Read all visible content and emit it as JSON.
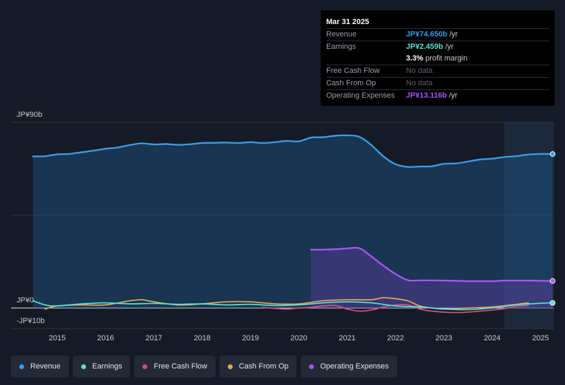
{
  "tooltip": {
    "date": "Mar 31 2025",
    "rows": {
      "revenue": {
        "label": "Revenue",
        "value": "JP¥74.650b",
        "unit": "/yr",
        "color": "#3b9be6"
      },
      "earnings": {
        "label": "Earnings",
        "value": "JP¥2.459b",
        "unit": "/yr",
        "color": "#5ce0d2"
      },
      "margin": {
        "value": "3.3%",
        "unit": "profit margin"
      },
      "fcf": {
        "label": "Free Cash Flow",
        "value": "No data"
      },
      "cfo": {
        "label": "Cash From Op",
        "value": "No data"
      },
      "opex": {
        "label": "Operating Expenses",
        "value": "JP¥13.116b",
        "unit": "/yr",
        "color": "#a855f7"
      }
    }
  },
  "legend": [
    {
      "label": "Revenue",
      "color": "#3b9be6"
    },
    {
      "label": "Earnings",
      "color": "#5ce0d2"
    },
    {
      "label": "Free Cash Flow",
      "color": "#d64f85"
    },
    {
      "label": "Cash From Op",
      "color": "#e6a659"
    },
    {
      "label": "Operating Expenses",
      "color": "#a855f7"
    }
  ],
  "chart_data": {
    "type": "line",
    "title": "",
    "xlabel": "",
    "ylabel": "",
    "y_tick_labels": [
      "JP¥90b",
      "JP¥0",
      "-JP¥10b"
    ],
    "ylim": [
      -10,
      90
    ],
    "xlim": [
      2014.5,
      2025.25
    ],
    "x_ticks": [
      2015,
      2016,
      2017,
      2018,
      2019,
      2020,
      2021,
      2022,
      2023,
      2024,
      2025
    ],
    "forecast_shade_from": 2024.25,
    "series": [
      {
        "name": "Revenue",
        "color": "#3b9be6",
        "fill": true,
        "x": [
          2014.5,
          2014.75,
          2015.0,
          2015.25,
          2015.5,
          2015.75,
          2016.0,
          2016.25,
          2016.5,
          2016.75,
          2017.0,
          2017.25,
          2017.5,
          2017.75,
          2018.0,
          2018.25,
          2018.5,
          2018.75,
          2019.0,
          2019.25,
          2019.5,
          2019.75,
          2020.0,
          2020.25,
          2020.5,
          2020.75,
          2021.0,
          2021.25,
          2021.5,
          2021.75,
          2022.0,
          2022.25,
          2022.5,
          2022.75,
          2023.0,
          2023.25,
          2023.5,
          2023.75,
          2024.0,
          2024.25,
          2024.5,
          2024.75,
          2025.0,
          2025.25
        ],
        "values": [
          73.5,
          73.6,
          74.5,
          74.7,
          75.5,
          76.3,
          77.2,
          77.8,
          79.0,
          79.8,
          79.3,
          79.5,
          79.1,
          79.4,
          80.0,
          80.1,
          80.2,
          80.0,
          80.4,
          80.0,
          80.4,
          81.0,
          80.8,
          82.6,
          82.8,
          83.5,
          83.7,
          83.0,
          79.0,
          73.5,
          69.7,
          68.4,
          68.6,
          68.7,
          69.9,
          70.1,
          71.0,
          72.0,
          72.4,
          73.2,
          73.6,
          74.4,
          74.7,
          74.65
        ]
      },
      {
        "name": "Earnings",
        "color": "#5ce0d2",
        "fill": false,
        "x": [
          2014.5,
          2014.75,
          2015.0,
          2015.5,
          2016.0,
          2016.5,
          2017.0,
          2017.5,
          2018.0,
          2018.5,
          2019.0,
          2019.5,
          2020.0,
          2020.5,
          2021.0,
          2021.5,
          2022.0,
          2022.5,
          2023.0,
          2023.5,
          2024.0,
          2024.5,
          2025.0,
          2025.25
        ],
        "values": [
          3.5,
          1.5,
          1.0,
          2.0,
          2.5,
          2.0,
          2.2,
          1.8,
          2.0,
          1.5,
          1.8,
          1.2,
          1.5,
          2.5,
          3.0,
          2.5,
          1.0,
          0.5,
          -0.5,
          -0.8,
          0.0,
          1.5,
          2.3,
          2.459
        ]
      },
      {
        "name": "Free Cash Flow",
        "color": "#d64f85",
        "fill": false,
        "x": [
          2019.25,
          2019.5,
          2019.75,
          2020.0,
          2020.25,
          2020.5,
          2020.75,
          2021.0,
          2021.25,
          2021.5,
          2021.75,
          2022.0,
          2022.25,
          2022.5,
          2022.75,
          2023.0,
          2023.25,
          2023.5,
          2023.75,
          2024.0,
          2024.25,
          2024.5,
          2024.75
        ],
        "values": [
          0.3,
          -0.2,
          -0.5,
          0.0,
          0.3,
          1.0,
          1.2,
          -0.5,
          -1.5,
          -1.0,
          0.5,
          1.5,
          1.5,
          -0.5,
          -1.5,
          -2.0,
          -2.2,
          -2.0,
          -1.5,
          -1.0,
          -0.3,
          0.8,
          1.2
        ]
      },
      {
        "name": "Cash From Op",
        "color": "#e6a659",
        "fill": false,
        "x": [
          2014.75,
          2015.0,
          2015.5,
          2016.0,
          2016.5,
          2016.75,
          2017.0,
          2017.5,
          2018.0,
          2018.5,
          2019.0,
          2019.5,
          2020.0,
          2020.5,
          2021.0,
          2021.5,
          2021.75,
          2022.0,
          2022.25,
          2022.5,
          2022.75,
          2023.0,
          2023.5,
          2024.0,
          2024.5,
          2024.75
        ],
        "values": [
          -0.5,
          1.0,
          1.5,
          1.5,
          3.5,
          4.0,
          3.0,
          1.5,
          2.0,
          3.0,
          3.0,
          2.0,
          2.0,
          3.5,
          4.0,
          4.0,
          5.0,
          4.5,
          3.5,
          1.0,
          0.0,
          -0.5,
          0.0,
          0.5,
          1.8,
          2.5
        ]
      },
      {
        "name": "Operating Expenses",
        "color": "#a855f7",
        "fill": true,
        "x": [
          2020.25,
          2020.5,
          2020.75,
          2021.0,
          2021.25,
          2021.5,
          2021.75,
          2022.0,
          2022.25,
          2022.5,
          2022.75,
          2023.0,
          2023.25,
          2023.5,
          2023.75,
          2024.0,
          2024.25,
          2024.5,
          2024.75,
          2025.0,
          2025.25
        ],
        "values": [
          28.3,
          28.3,
          28.5,
          28.9,
          29.0,
          25.0,
          20.5,
          16.5,
          13.5,
          13.4,
          13.4,
          13.3,
          13.2,
          13.0,
          13.0,
          13.0,
          13.3,
          13.3,
          13.3,
          13.2,
          13.116
        ]
      }
    ]
  }
}
